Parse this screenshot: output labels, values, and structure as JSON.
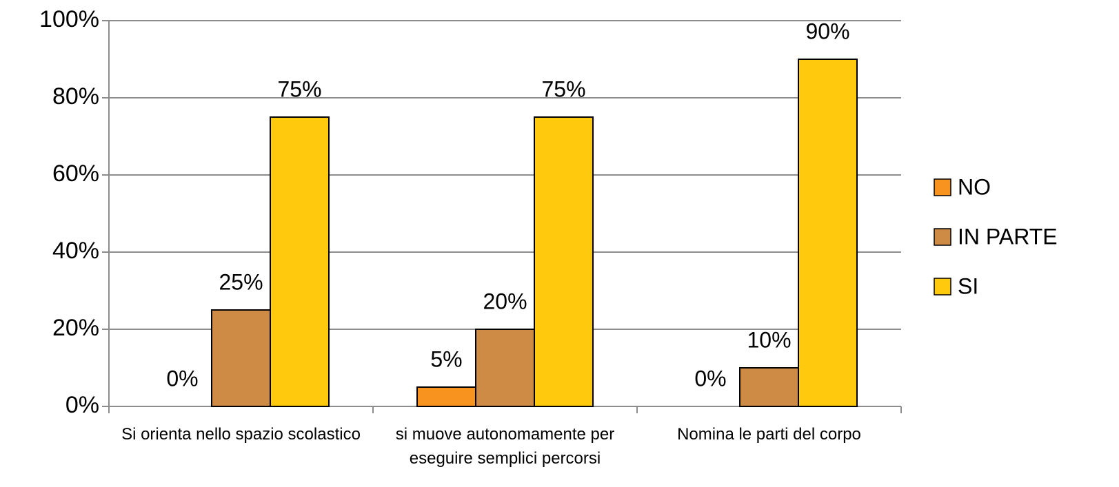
{
  "chart_data": {
    "type": "bar",
    "categories": [
      "Si orienta nello spazio scolastico",
      "si muove autonomamente per eseguire semplici percorsi",
      "Nomina le parti del corpo"
    ],
    "series": [
      {
        "name": "NO",
        "color": "#f7931e",
        "values": [
          0,
          5,
          0
        ],
        "value_labels": [
          "0%",
          "5%",
          "0%"
        ]
      },
      {
        "name": "IN PARTE",
        "color": "#cd8b45",
        "values": [
          25,
          20,
          10
        ],
        "value_labels": [
          "25%",
          "20%",
          "10%"
        ]
      },
      {
        "name": "SI",
        "color": "#ffc90e",
        "values": [
          75,
          75,
          90
        ],
        "value_labels": [
          "75%",
          "75%",
          "90%"
        ]
      }
    ],
    "ylim": [
      0,
      100
    ],
    "yticks": [
      {
        "value": 0,
        "label": "0%"
      },
      {
        "value": 20,
        "label": "20%"
      },
      {
        "value": 40,
        "label": "40%"
      },
      {
        "value": 60,
        "label": "60%"
      },
      {
        "value": 80,
        "label": "80%"
      },
      {
        "value": 100,
        "label": "100%"
      }
    ],
    "grid": true,
    "legend": "right"
  }
}
